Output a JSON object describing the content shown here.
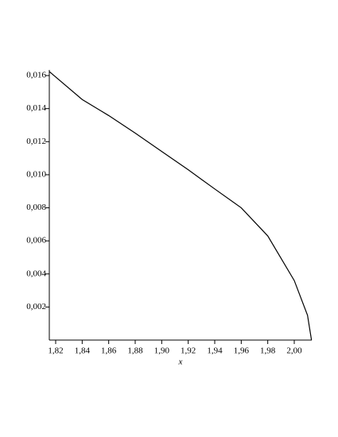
{
  "chart_data": {
    "type": "line",
    "x_label": "x",
    "x": [
      1.8152,
      1.84,
      1.86,
      1.88,
      1.9,
      1.92,
      1.94,
      1.96,
      1.98,
      2.0,
      2.01,
      2.013
    ],
    "series": [
      {
        "color": "#000000",
        "values": [
          0.01624,
          0.01455,
          0.01358,
          0.01252,
          0.01141,
          0.0103,
          0.00914,
          0.008,
          0.0063,
          0.0036,
          0.0015,
          0.0
        ]
      }
    ],
    "xlim": [
      1.8152,
      2.0132
    ],
    "ylim": [
      0,
      0.01634
    ],
    "xticks": [
      {
        "value": 1.82,
        "label": "1,82"
      },
      {
        "value": 1.84,
        "label": "1,84"
      },
      {
        "value": 1.86,
        "label": "1,86"
      },
      {
        "value": 1.88,
        "label": "1,88"
      },
      {
        "value": 1.9,
        "label": "1,90"
      },
      {
        "value": 1.92,
        "label": "1,92"
      },
      {
        "value": 1.94,
        "label": "1,94"
      },
      {
        "value": 1.96,
        "label": "1,96"
      },
      {
        "value": 1.98,
        "label": "1,98"
      },
      {
        "value": 2.0,
        "label": "2,00"
      }
    ],
    "yticks": [
      {
        "value": 0.002,
        "label": "0,002"
      },
      {
        "value": 0.004,
        "label": "0,004"
      },
      {
        "value": 0.006,
        "label": "0,006"
      },
      {
        "value": 0.008,
        "label": "0,008"
      },
      {
        "value": 0.01,
        "label": "0,010"
      },
      {
        "value": 0.012,
        "label": "0,012"
      },
      {
        "value": 0.014,
        "label": "0,014"
      },
      {
        "value": 0.016,
        "label": "0,016"
      }
    ]
  }
}
